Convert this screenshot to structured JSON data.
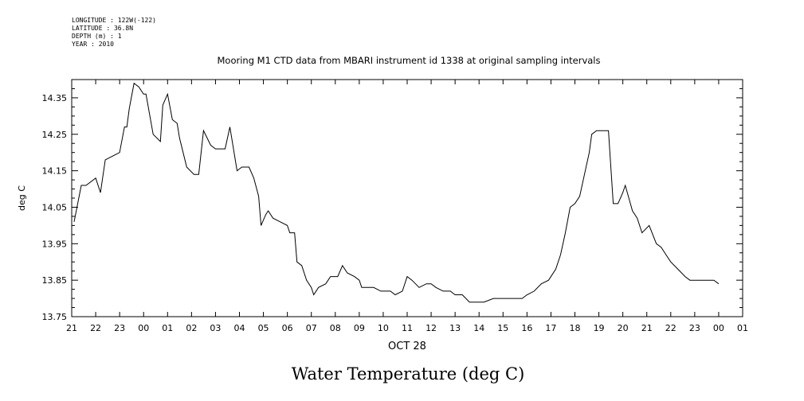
{
  "header": {
    "longitude": "LONGITUDE : 122W(-122)",
    "latitude": "LATITUDE : 36.8N",
    "depth": "DEPTH (m) : 1",
    "year": "YEAR : 2010"
  },
  "footer_title": "Water Temperature (deg C)",
  "chart_data": {
    "type": "line",
    "title": "Mooring M1 CTD data from MBARI instrument id 1338 at original sampling intervals",
    "xlabel": "OCT 28",
    "ylabel": "deg C",
    "ylim": [
      13.75,
      14.4
    ],
    "xlim": [
      21,
      49
    ],
    "x_unit": "hours since 21:00 on the first day (hour 0 = 21)",
    "x_tick_labels": [
      "21",
      "22",
      "23",
      "00",
      "01",
      "02",
      "03",
      "04",
      "05",
      "06",
      "07",
      "08",
      "09",
      "10",
      "11",
      "12",
      "13",
      "14",
      "15",
      "16",
      "17",
      "18",
      "19",
      "20",
      "21",
      "22",
      "23",
      "00",
      "01"
    ],
    "y_tick_labels": [
      "14.35",
      "14.25",
      "14.15",
      "14.05",
      "13.95",
      "13.85",
      "13.75"
    ],
    "y_ticks": [
      14.35,
      14.25,
      14.15,
      14.05,
      13.95,
      13.85,
      13.75
    ],
    "grid": false,
    "series": [
      {
        "name": "",
        "color": "#000000",
        "x": [
          21.1,
          21.4,
          21.6,
          22.0,
          22.2,
          22.4,
          22.7,
          23.0,
          23.2,
          23.3,
          23.4,
          23.6,
          23.8,
          24.0,
          24.1,
          24.4,
          24.7,
          24.8,
          25.0,
          25.2,
          25.4,
          25.5,
          25.8,
          26.1,
          26.3,
          26.5,
          26.8,
          27.0,
          27.4,
          27.6,
          27.9,
          28.1,
          28.4,
          28.6,
          28.8,
          28.9,
          29.1,
          29.2,
          29.4,
          29.7,
          30.0,
          30.1,
          30.3,
          30.4,
          30.6,
          30.8,
          31.0,
          31.1,
          31.3,
          31.6,
          31.8,
          31.9,
          32.1,
          32.3,
          32.5,
          32.8,
          33.0,
          33.1,
          33.3,
          33.6,
          33.9,
          34.1,
          34.3,
          34.5,
          34.8,
          35.0,
          35.2,
          35.5,
          35.8,
          36.0,
          36.2,
          36.5,
          36.8,
          37.0,
          37.3,
          37.6,
          37.9,
          38.2,
          38.6,
          38.9,
          39.2,
          39.5,
          39.8,
          40.0,
          40.3,
          40.6,
          40.9,
          41.2,
          41.4,
          41.6,
          41.8,
          42.0,
          42.2,
          42.4,
          42.6,
          42.7,
          42.9,
          43.1,
          43.2,
          43.4,
          43.6,
          43.8,
          44.0,
          44.1,
          44.4,
          44.6,
          44.8,
          45.1,
          45.4,
          45.6,
          45.8,
          46.0,
          46.3,
          46.6,
          46.8,
          47.0,
          47.3,
          47.6,
          47.8,
          48.0
        ],
        "y": [
          14.01,
          14.11,
          14.11,
          14.13,
          14.09,
          14.18,
          14.19,
          14.2,
          14.27,
          14.27,
          14.32,
          14.39,
          14.38,
          14.36,
          14.36,
          14.25,
          14.23,
          14.33,
          14.36,
          14.29,
          14.28,
          14.24,
          14.16,
          14.14,
          14.14,
          14.26,
          14.22,
          14.21,
          14.21,
          14.27,
          14.15,
          14.16,
          14.16,
          14.13,
          14.08,
          14.0,
          14.03,
          14.04,
          14.02,
          14.01,
          14.0,
          13.98,
          13.98,
          13.9,
          13.89,
          13.85,
          13.83,
          13.81,
          13.83,
          13.84,
          13.86,
          13.86,
          13.86,
          13.89,
          13.87,
          13.86,
          13.85,
          13.83,
          13.83,
          13.83,
          13.82,
          13.82,
          13.82,
          13.81,
          13.82,
          13.86,
          13.85,
          13.83,
          13.84,
          13.84,
          13.83,
          13.82,
          13.82,
          13.81,
          13.81,
          13.79,
          13.79,
          13.79,
          13.8,
          13.8,
          13.8,
          13.8,
          13.8,
          13.81,
          13.82,
          13.84,
          13.85,
          13.88,
          13.92,
          13.98,
          14.05,
          14.06,
          14.08,
          14.14,
          14.2,
          14.25,
          14.26,
          14.26,
          14.26,
          14.26,
          14.06,
          14.06,
          14.09,
          14.11,
          14.04,
          14.02,
          13.98,
          14.0,
          13.95,
          13.94,
          13.92,
          13.9,
          13.88,
          13.86,
          13.85,
          13.85,
          13.85,
          13.85,
          13.85,
          13.84
        ]
      }
    ]
  }
}
